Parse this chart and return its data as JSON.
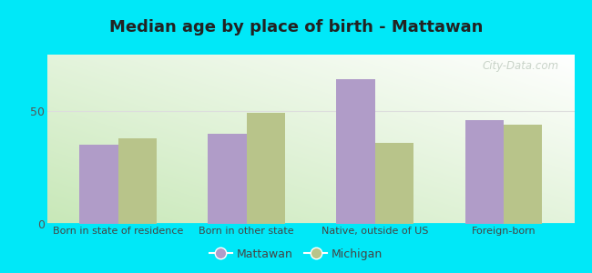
{
  "title": "Median age by place of birth - Mattawan",
  "categories": [
    "Born in state of residence",
    "Born in other state",
    "Native, outside of US",
    "Foreign-born"
  ],
  "mattawan_values": [
    35,
    40,
    64,
    46
  ],
  "michigan_values": [
    38,
    49,
    36,
    44
  ],
  "mattawan_color": "#b09cc8",
  "michigan_color": "#b8c48a",
  "bar_width": 0.3,
  "ylim": [
    0,
    75
  ],
  "yticks": [
    0,
    50
  ],
  "legend_labels": [
    "Mattawan",
    "Michigan"
  ],
  "outer_bg": "#00e8f8",
  "title_fontsize": 13,
  "axis_label_fontsize": 8,
  "legend_fontsize": 9,
  "grad_top": "#f0faf0",
  "grad_bottom": "#c8e8c0",
  "grad_right": "#ffffff",
  "watermark_text": "City-Data.com",
  "watermark_color": "#c0ccc0",
  "watermark_fontsize": 8.5
}
